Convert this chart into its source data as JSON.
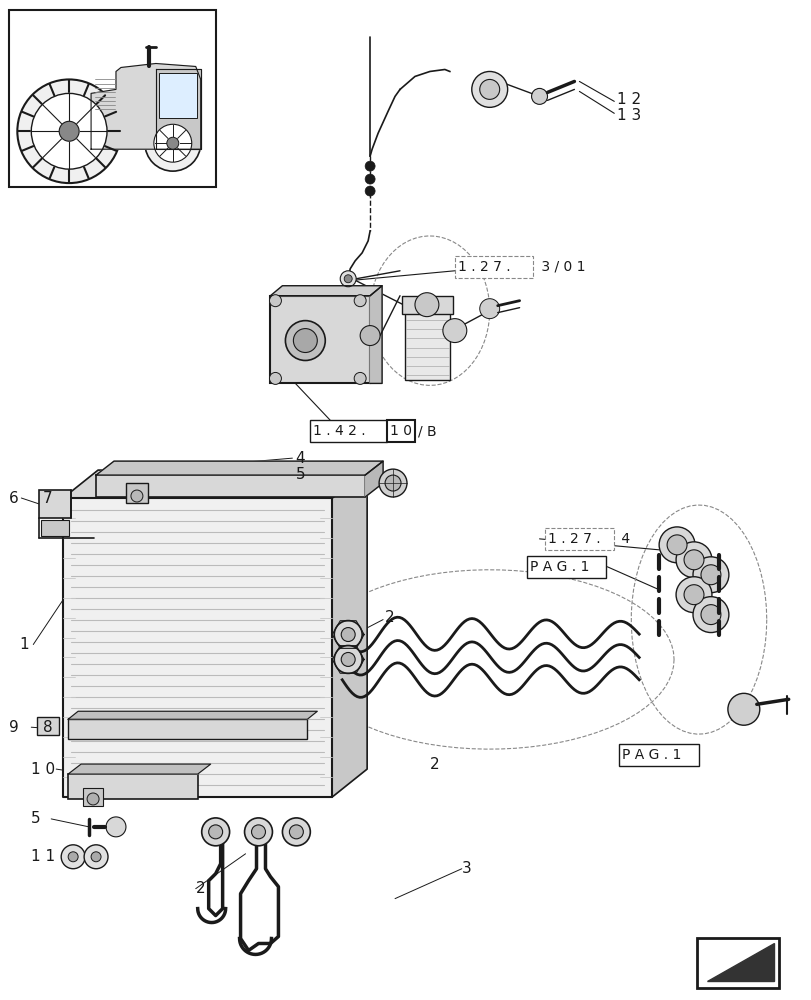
{
  "bg_color": "#ffffff",
  "lc": "#1a1a1a",
  "figsize": [
    8.12,
    10.0
  ],
  "dpi": 100
}
